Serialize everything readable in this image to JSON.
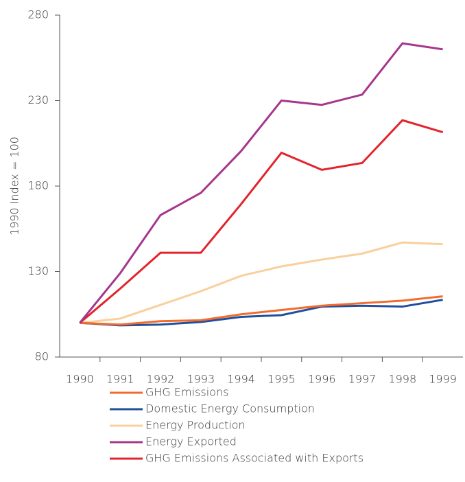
{
  "chart_data": {
    "type": "line",
    "y_label": "1990 Index = 100",
    "categories": [
      "1990",
      "1991",
      "1992",
      "1993",
      "1994",
      "1995",
      "1996",
      "1997",
      "1998",
      "1999"
    ],
    "series": [
      {
        "name": "GHG Emissions",
        "color": "#f26b2e",
        "values": [
          100,
          99,
          101,
          101.5,
          105,
          107.5,
          110,
          111.5,
          113,
          115.5
        ]
      },
      {
        "name": "Domestic Energy Consumption",
        "color": "#1f4f9d",
        "values": [
          100,
          98.5,
          99,
          100.5,
          103.5,
          104.5,
          109.5,
          110,
          109.5,
          113.5
        ]
      },
      {
        "name": "Energy Production",
        "color": "#f9cf9d",
        "values": [
          100,
          102.5,
          110.5,
          118.5,
          127.5,
          133,
          137,
          140.5,
          147,
          146
        ]
      },
      {
        "name": "Energy Exported",
        "color": "#a6368c",
        "values": [
          100,
          129,
          163,
          176,
          200.5,
          230,
          227.5,
          233.5,
          263.5,
          260
        ]
      },
      {
        "name": "GHG Emissions Associated with Exports",
        "color": "#e3242b",
        "values": [
          100,
          120,
          141,
          141,
          169.5,
          199.5,
          189.5,
          193.5,
          218.5,
          211.5
        ]
      }
    ],
    "ylim": [
      80,
      280
    ],
    "yticks": [
      80,
      130,
      180,
      230,
      280
    ],
    "grid": false
  }
}
